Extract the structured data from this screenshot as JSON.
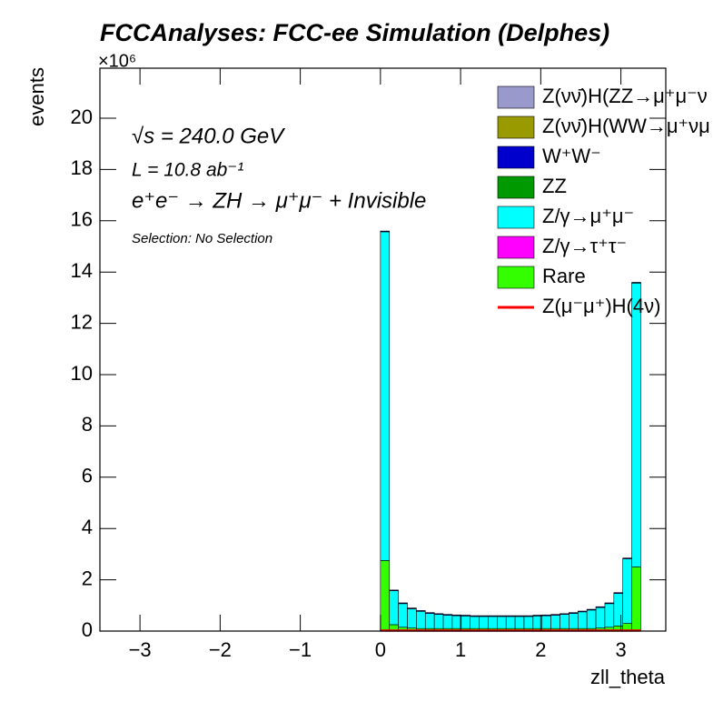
{
  "chart_data": {
    "type": "histogram",
    "title": "FCCAnalyses: FCC-ee Simulation (Delphes)",
    "y_multiplier": "×10⁶",
    "y_label": "events",
    "x_label": "zll_theta",
    "annotations": [
      "√s = 240.0 GeV",
      "L = 10.8 ab⁻¹",
      "e⁺e⁻ → ZH → μ⁺μ⁻ + Invisible",
      "Selection: No Selection"
    ],
    "bins": [
      0,
      0.112,
      0.224,
      0.336,
      0.448,
      0.56,
      0.672,
      0.784,
      0.896,
      1.008,
      1.12,
      1.232,
      1.344,
      1.456,
      1.568,
      1.68,
      1.792,
      1.904,
      2.016,
      2.128,
      2.24,
      2.352,
      2.464,
      2.576,
      2.688,
      2.8,
      2.912,
      3.024,
      3.136,
      3.248
    ],
    "series": [
      {
        "name": "Z(νν̄)H(ZZ→μ⁺μ⁻ν",
        "color": "#9999cc",
        "values": [
          0,
          0,
          0,
          0,
          0,
          0,
          0,
          0,
          0,
          0,
          0,
          0,
          0,
          0,
          0,
          0,
          0,
          0,
          0,
          0,
          0,
          0,
          0,
          0,
          0,
          0,
          0,
          0,
          0
        ]
      },
      {
        "name": "Z(νν̄)H(WW→μ⁺νμ",
        "color": "#999900",
        "values": [
          0,
          0,
          0,
          0,
          0,
          0,
          0,
          0,
          0,
          0,
          0,
          0,
          0,
          0,
          0,
          0,
          0,
          0,
          0,
          0,
          0,
          0,
          0,
          0,
          0,
          0,
          0,
          0,
          0
        ]
      },
      {
        "name": "W⁺W⁻",
        "color": "#0000cc",
        "values": [
          0.03,
          0.03,
          0.03,
          0.03,
          0.03,
          0.03,
          0.03,
          0.03,
          0.03,
          0.03,
          0.03,
          0.03,
          0.03,
          0.03,
          0.03,
          0.03,
          0.03,
          0.03,
          0.03,
          0.03,
          0.03,
          0.03,
          0.03,
          0.03,
          0.03,
          0.03,
          0.03,
          0.03,
          0.03
        ]
      },
      {
        "name": "ZZ",
        "color": "#009900",
        "values": [
          0,
          0,
          0,
          0,
          0,
          0,
          0,
          0,
          0,
          0,
          0,
          0,
          0,
          0,
          0,
          0,
          0,
          0,
          0,
          0,
          0,
          0,
          0,
          0,
          0,
          0,
          0,
          0,
          0
        ]
      },
      {
        "name": "Z/γ→μ⁺μ⁻",
        "color": "#00ffff",
        "values": [
          12.82,
          1.32,
          0.92,
          0.75,
          0.67,
          0.59,
          0.55,
          0.52,
          0.5,
          0.49,
          0.47,
          0.47,
          0.47,
          0.47,
          0.47,
          0.47,
          0.47,
          0.49,
          0.5,
          0.52,
          0.55,
          0.59,
          0.65,
          0.72,
          0.8,
          0.92,
          1.27,
          2.52,
          11.07
        ]
      },
      {
        "name": "Z/γ→τ⁺τ⁻",
        "color": "#ff00ff",
        "values": [
          0,
          0,
          0,
          0,
          0,
          0,
          0,
          0,
          0,
          0,
          0,
          0,
          0,
          0,
          0,
          0,
          0,
          0,
          0,
          0,
          0,
          0,
          0,
          0,
          0,
          0,
          0,
          0,
          0
        ]
      },
      {
        "name": "Rare",
        "color": "#33ff00",
        "values": [
          2.75,
          0.25,
          0.15,
          0.12,
          0.1,
          0.1,
          0.1,
          0.1,
          0.1,
          0.1,
          0.1,
          0.1,
          0.1,
          0.1,
          0.1,
          0.1,
          0.1,
          0.1,
          0.1,
          0.1,
          0.1,
          0.1,
          0.1,
          0.1,
          0.12,
          0.15,
          0.2,
          0.3,
          2.5
        ]
      },
      {
        "name": "Z(μ⁻μ⁺)H(4ν)",
        "color": "#ff0000",
        "style": "line",
        "values": [
          0.02,
          0.02,
          0.02,
          0.02,
          0.02,
          0.02,
          0.02,
          0.02,
          0.02,
          0.02,
          0.02,
          0.02,
          0.02,
          0.02,
          0.02,
          0.02,
          0.02,
          0.02,
          0.02,
          0.02,
          0.02,
          0.02,
          0.02,
          0.02,
          0.02,
          0.02,
          0.02,
          0.02,
          0.02
        ]
      }
    ],
    "stack_order": [
      6,
      5,
      4,
      3,
      2,
      1,
      0
    ],
    "xlim": [
      -3.5,
      3.56
    ],
    "ylim": [
      0,
      21.95
    ],
    "xticks": [
      {
        "value": -3,
        "label": "−3"
      },
      {
        "value": -2,
        "label": "−2"
      },
      {
        "value": -1,
        "label": "−1"
      },
      0,
      1,
      2,
      3
    ],
    "yticks": [
      0,
      2,
      4,
      6,
      8,
      10,
      12,
      14,
      16,
      18,
      20
    ]
  }
}
